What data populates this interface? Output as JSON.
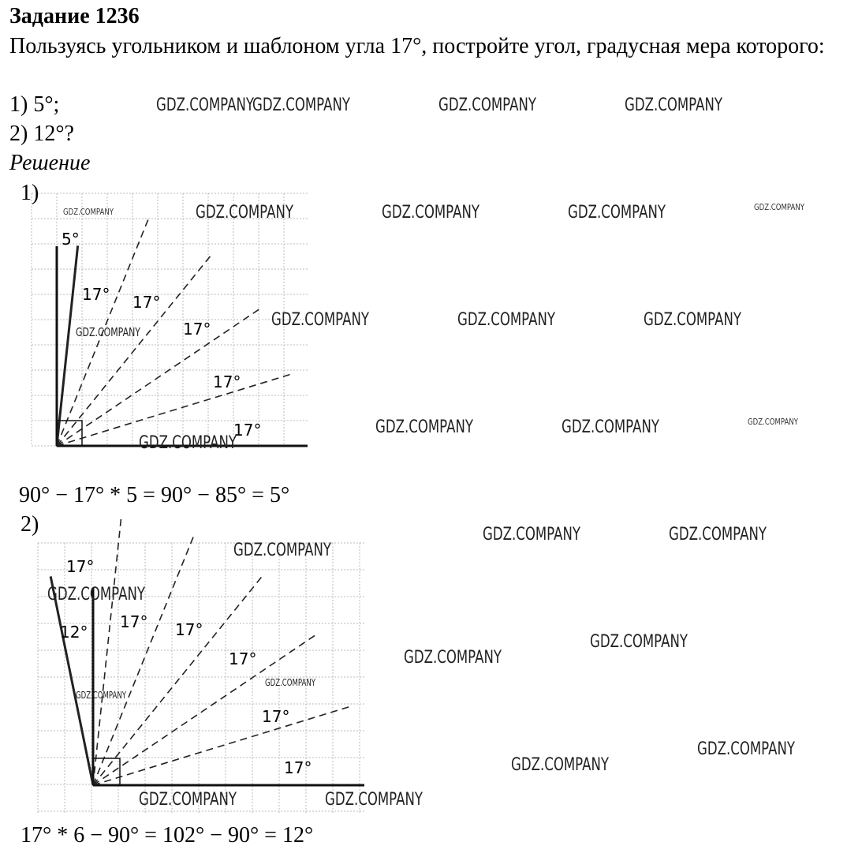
{
  "header": {
    "title": "Задание 1236"
  },
  "problem": {
    "text": "Пользуясь угольником и шаблоном угла 17°, постройте угол, градусная мера которого:",
    "items": [
      "1) 5°;",
      "2) 12°?"
    ]
  },
  "solution": {
    "heading": "Решение",
    "parts": [
      {
        "label": "1)",
        "angle_labels": [
          "5°",
          "17°",
          "17°",
          "17°",
          "17°",
          "17°"
        ],
        "equation": "90° − 17° * 5 = 90° − 85° = 5°"
      },
      {
        "label": "2)",
        "angle_labels": [
          "17°",
          "12°",
          "17°",
          "17°",
          "17°",
          "17°",
          "17°"
        ],
        "equation": "17° * 6 − 90° = 102° − 90° = 12°"
      }
    ]
  },
  "watermark": "GDZ.COMPANY"
}
